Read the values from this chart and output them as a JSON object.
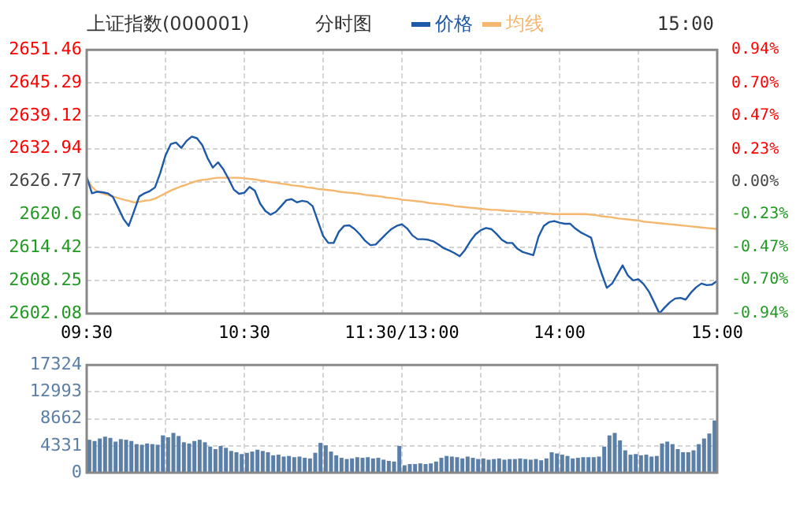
{
  "chart_data": [
    {
      "type": "line",
      "title": "上证指数(000001)",
      "subtitle": "分时图",
      "annotations": [
        "15:00"
      ],
      "legend": "top",
      "marker": "none",
      "line_style": "solid",
      "grid": true,
      "categories": [
        "09:30",
        null,
        null,
        null,
        null,
        null,
        null,
        null,
        null,
        null,
        null,
        null,
        null,
        null,
        null,
        null,
        null,
        null,
        null,
        null,
        null,
        null,
        null,
        null,
        null,
        null,
        null,
        null,
        null,
        null,
        "10:30",
        null,
        null,
        null,
        null,
        null,
        null,
        null,
        null,
        null,
        null,
        null,
        null,
        null,
        null,
        null,
        null,
        null,
        null,
        null,
        null,
        null,
        null,
        null,
        null,
        null,
        null,
        null,
        null,
        null,
        "11:30/13:00",
        null,
        null,
        null,
        null,
        null,
        null,
        null,
        null,
        null,
        null,
        null,
        null,
        null,
        null,
        null,
        null,
        null,
        null,
        null,
        null,
        null,
        null,
        null,
        null,
        null,
        null,
        null,
        null,
        null,
        "14:00",
        null,
        null,
        null,
        null,
        null,
        null,
        null,
        null,
        null,
        null,
        null,
        null,
        null,
        null,
        null,
        null,
        null,
        null,
        null,
        null,
        null,
        null,
        null,
        null,
        null,
        null,
        null,
        null,
        null,
        "15:00"
      ],
      "ylim": [
        2602.08,
        2651.46
      ],
      "yticks": [
        2602.08,
        2608.25,
        2614.42,
        2620.6,
        2626.77,
        2632.94,
        2639.12,
        2645.29,
        2651.46
      ],
      "y2lim": [
        -0.94,
        0.94
      ],
      "y2ticks": [
        {
          "value": -0.94,
          "label": "-0.94%"
        },
        {
          "value": -0.7,
          "label": "-0.70%"
        },
        {
          "value": -0.47,
          "label": "-0.47%"
        },
        {
          "value": -0.23,
          "label": "-0.23%"
        },
        {
          "value": 0,
          "label": "0.00%"
        },
        {
          "value": 0.23,
          "label": "0.23%"
        },
        {
          "value": 0.47,
          "label": "0.47%"
        },
        {
          "value": 0.7,
          "label": "0.70%"
        },
        {
          "value": 0.94,
          "label": "0.94%"
        }
      ],
      "series": [
        {
          "name": "价格",
          "color": "#1e5aa8",
          "values": [
            2627.7,
            2624.6,
            2624.9,
            2624.8,
            2624.6,
            2623.9,
            2621.9,
            2619.8,
            2618.5,
            2621.2,
            2624.0,
            2624.6,
            2625.0,
            2625.7,
            2628.4,
            2631.7,
            2633.8,
            2634.1,
            2633.1,
            2634.4,
            2635.2,
            2634.9,
            2633.6,
            2631.2,
            2629.4,
            2630.4,
            2629.1,
            2627.3,
            2625.3,
            2624.5,
            2624.7,
            2625.8,
            2625.1,
            2622.7,
            2621.3,
            2620.6,
            2621.1,
            2622.2,
            2623.3,
            2623.5,
            2622.9,
            2623.2,
            2623.0,
            2622.2,
            2619.4,
            2616.6,
            2615.3,
            2615.3,
            2617.4,
            2618.5,
            2618.6,
            2617.9,
            2616.9,
            2615.7,
            2614.9,
            2615.0,
            2616.0,
            2617.0,
            2617.9,
            2618.5,
            2618.8,
            2618.0,
            2616.7,
            2616.0,
            2616.0,
            2615.9,
            2615.6,
            2615.0,
            2614.3,
            2613.9,
            2613.4,
            2612.8,
            2614.0,
            2615.6,
            2616.9,
            2617.7,
            2618.1,
            2617.9,
            2617.0,
            2615.9,
            2615.3,
            2615.3,
            2614.2,
            2613.6,
            2613.3,
            2613.0,
            2616.5,
            2618.5,
            2619.2,
            2619.4,
            2619.1,
            2618.9,
            2618.9,
            2618.0,
            2617.3,
            2616.8,
            2616.3,
            2612.6,
            2609.6,
            2606.9,
            2607.7,
            2609.4,
            2611.1,
            2609.2,
            2608.3,
            2608.5,
            2607.6,
            2606.2,
            2604.2,
            2602.1,
            2603.2,
            2604.2,
            2604.9,
            2605.0,
            2604.7,
            2606.0,
            2607.0,
            2607.7,
            2607.4,
            2607.5,
            2608.2
          ]
        },
        {
          "name": "均线",
          "color": "#f5b66e",
          "values": [
            2627.3,
            2625.8,
            2624.9,
            2624.6,
            2624.3,
            2624.0,
            2623.7,
            2623.4,
            2623.2,
            2622.9,
            2623.0,
            2623.2,
            2623.3,
            2623.6,
            2624.1,
            2624.6,
            2625.1,
            2625.5,
            2625.9,
            2626.2,
            2626.6,
            2626.9,
            2627.1,
            2627.2,
            2627.4,
            2627.5,
            2627.5,
            2627.5,
            2627.5,
            2627.5,
            2627.4,
            2627.3,
            2627.2,
            2627.0,
            2626.9,
            2626.7,
            2626.6,
            2626.4,
            2626.3,
            2626.1,
            2626.0,
            2625.9,
            2625.7,
            2625.6,
            2625.4,
            2625.3,
            2625.2,
            2625.1,
            2624.9,
            2624.8,
            2624.7,
            2624.6,
            2624.5,
            2624.3,
            2624.2,
            2624.1,
            2624.0,
            2623.8,
            2623.7,
            2623.6,
            2623.4,
            2623.3,
            2623.2,
            2623.1,
            2623.0,
            2622.8,
            2622.7,
            2622.6,
            2622.5,
            2622.4,
            2622.2,
            2622.1,
            2622.0,
            2621.9,
            2621.8,
            2621.7,
            2621.6,
            2621.5,
            2621.5,
            2621.4,
            2621.3,
            2621.3,
            2621.2,
            2621.1,
            2621.1,
            2621.0,
            2620.9,
            2620.9,
            2620.8,
            2620.7,
            2620.7,
            2620.7,
            2620.7,
            2620.7,
            2620.7,
            2620.7,
            2620.6,
            2620.5,
            2620.3,
            2620.2,
            2620.1,
            2619.9,
            2619.8,
            2619.7,
            2619.6,
            2619.5,
            2619.3,
            2619.2,
            2619.1,
            2619.0,
            2618.9,
            2618.8,
            2618.7,
            2618.6,
            2618.5,
            2618.4,
            2618.3,
            2618.2,
            2618.1,
            2618.0,
            2617.9
          ]
        }
      ]
    },
    {
      "type": "bar",
      "grid": true,
      "tick_labels": "y",
      "categories": [
        null,
        null,
        null,
        null,
        null,
        null,
        null,
        null,
        null,
        null,
        null,
        null,
        null,
        null,
        null,
        null,
        null,
        null,
        null,
        null,
        null,
        null,
        null,
        null,
        null,
        null,
        null,
        null,
        null,
        null,
        null,
        null,
        null,
        null,
        null,
        null,
        null,
        null,
        null,
        null,
        null,
        null,
        null,
        null,
        null,
        null,
        null,
        null,
        null,
        null,
        null,
        null,
        null,
        null,
        null,
        null,
        null,
        null,
        null,
        null,
        null,
        null,
        null,
        null,
        null,
        null,
        null,
        null,
        null,
        null,
        null,
        null,
        null,
        null,
        null,
        null,
        null,
        null,
        null,
        null,
        null,
        null,
        null,
        null,
        null,
        null,
        null,
        null,
        null,
        null,
        null,
        null,
        null,
        null,
        null,
        null,
        null,
        null,
        null,
        null,
        null,
        null,
        null,
        null,
        null,
        null,
        null,
        null,
        null,
        null,
        null,
        null,
        null,
        null,
        null,
        null,
        null,
        null,
        null,
        null
      ],
      "ylim": [
        0,
        17324
      ],
      "yticks": [
        0,
        4331,
        8662,
        12993,
        17324
      ],
      "series": [
        {
          "color": "#5b7fa6",
          "values": [
            5300,
            5100,
            5500,
            5800,
            5600,
            5000,
            5400,
            5300,
            5100,
            4600,
            4500,
            4700,
            4600,
            4500,
            6000,
            5700,
            6400,
            5900,
            4900,
            4700,
            5100,
            5300,
            4900,
            4200,
            3800,
            4300,
            4000,
            3500,
            3300,
            3000,
            3200,
            3400,
            3700,
            3500,
            3300,
            2800,
            2900,
            2600,
            2700,
            2500,
            2600,
            2400,
            2300,
            3200,
            4800,
            4400,
            3400,
            2800,
            2400,
            2200,
            2300,
            2500,
            2400,
            2500,
            2300,
            2400,
            2100,
            1900,
            1800,
            4300,
            1200,
            1400,
            1400,
            1500,
            1400,
            1500,
            1800,
            2400,
            2700,
            2600,
            2500,
            2300,
            2600,
            2400,
            2200,
            2300,
            2100,
            2200,
            2300,
            2100,
            2200,
            2200,
            2300,
            2200,
            2100,
            2200,
            2000,
            2300,
            3300,
            3100,
            2900,
            2700,
            2300,
            2400,
            2500,
            2500,
            2500,
            2600,
            4200,
            6000,
            6400,
            5200,
            3600,
            2900,
            3000,
            2800,
            2900,
            2600,
            2700,
            4700,
            5000,
            4600,
            3800,
            3300,
            3300,
            3600,
            4600,
            5500,
            6300,
            8400
          ]
        }
      ]
    }
  ]
}
